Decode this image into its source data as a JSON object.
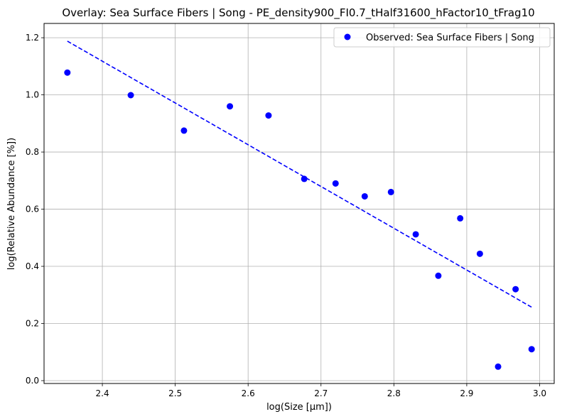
{
  "chart_data": {
    "type": "scatter",
    "title": "Overlay: Sea Surface Fibers | Song - PE_density900_FI0.7_tHalf31600_hFactor10_tFrag10",
    "xlabel": "log(Size [μm])",
    "ylabel": "log(Relative Abundance [%])",
    "xlim": [
      2.32,
      3.02
    ],
    "ylim": [
      -0.01,
      1.25
    ],
    "x_ticks": [
      "2.4",
      "2.5",
      "2.6",
      "2.7",
      "2.8",
      "2.9",
      "3.0"
    ],
    "y_ticks": [
      "0.0",
      "0.2",
      "0.4",
      "0.6",
      "0.8",
      "1.0",
      "1.2"
    ],
    "grid": true,
    "legend_position": "upper right",
    "series": [
      {
        "name": "Observed: Sea Surface Fibers | Song",
        "kind": "scatter",
        "color": "#0000ff",
        "x": [
          2.352,
          2.439,
          2.512,
          2.575,
          2.628,
          2.677,
          2.72,
          2.76,
          2.796,
          2.83,
          2.861,
          2.891,
          2.918,
          2.943,
          2.967,
          2.989
        ],
        "y": [
          1.078,
          0.999,
          0.875,
          0.96,
          0.928,
          0.706,
          0.69,
          0.645,
          0.66,
          0.512,
          0.367,
          0.568,
          0.444,
          0.049,
          0.32,
          0.11
        ]
      },
      {
        "kind": "line",
        "style": "dashed",
        "color": "#0000ff",
        "x": [
          2.352,
          2.989
        ],
        "y": [
          1.188,
          0.257
        ]
      }
    ]
  }
}
